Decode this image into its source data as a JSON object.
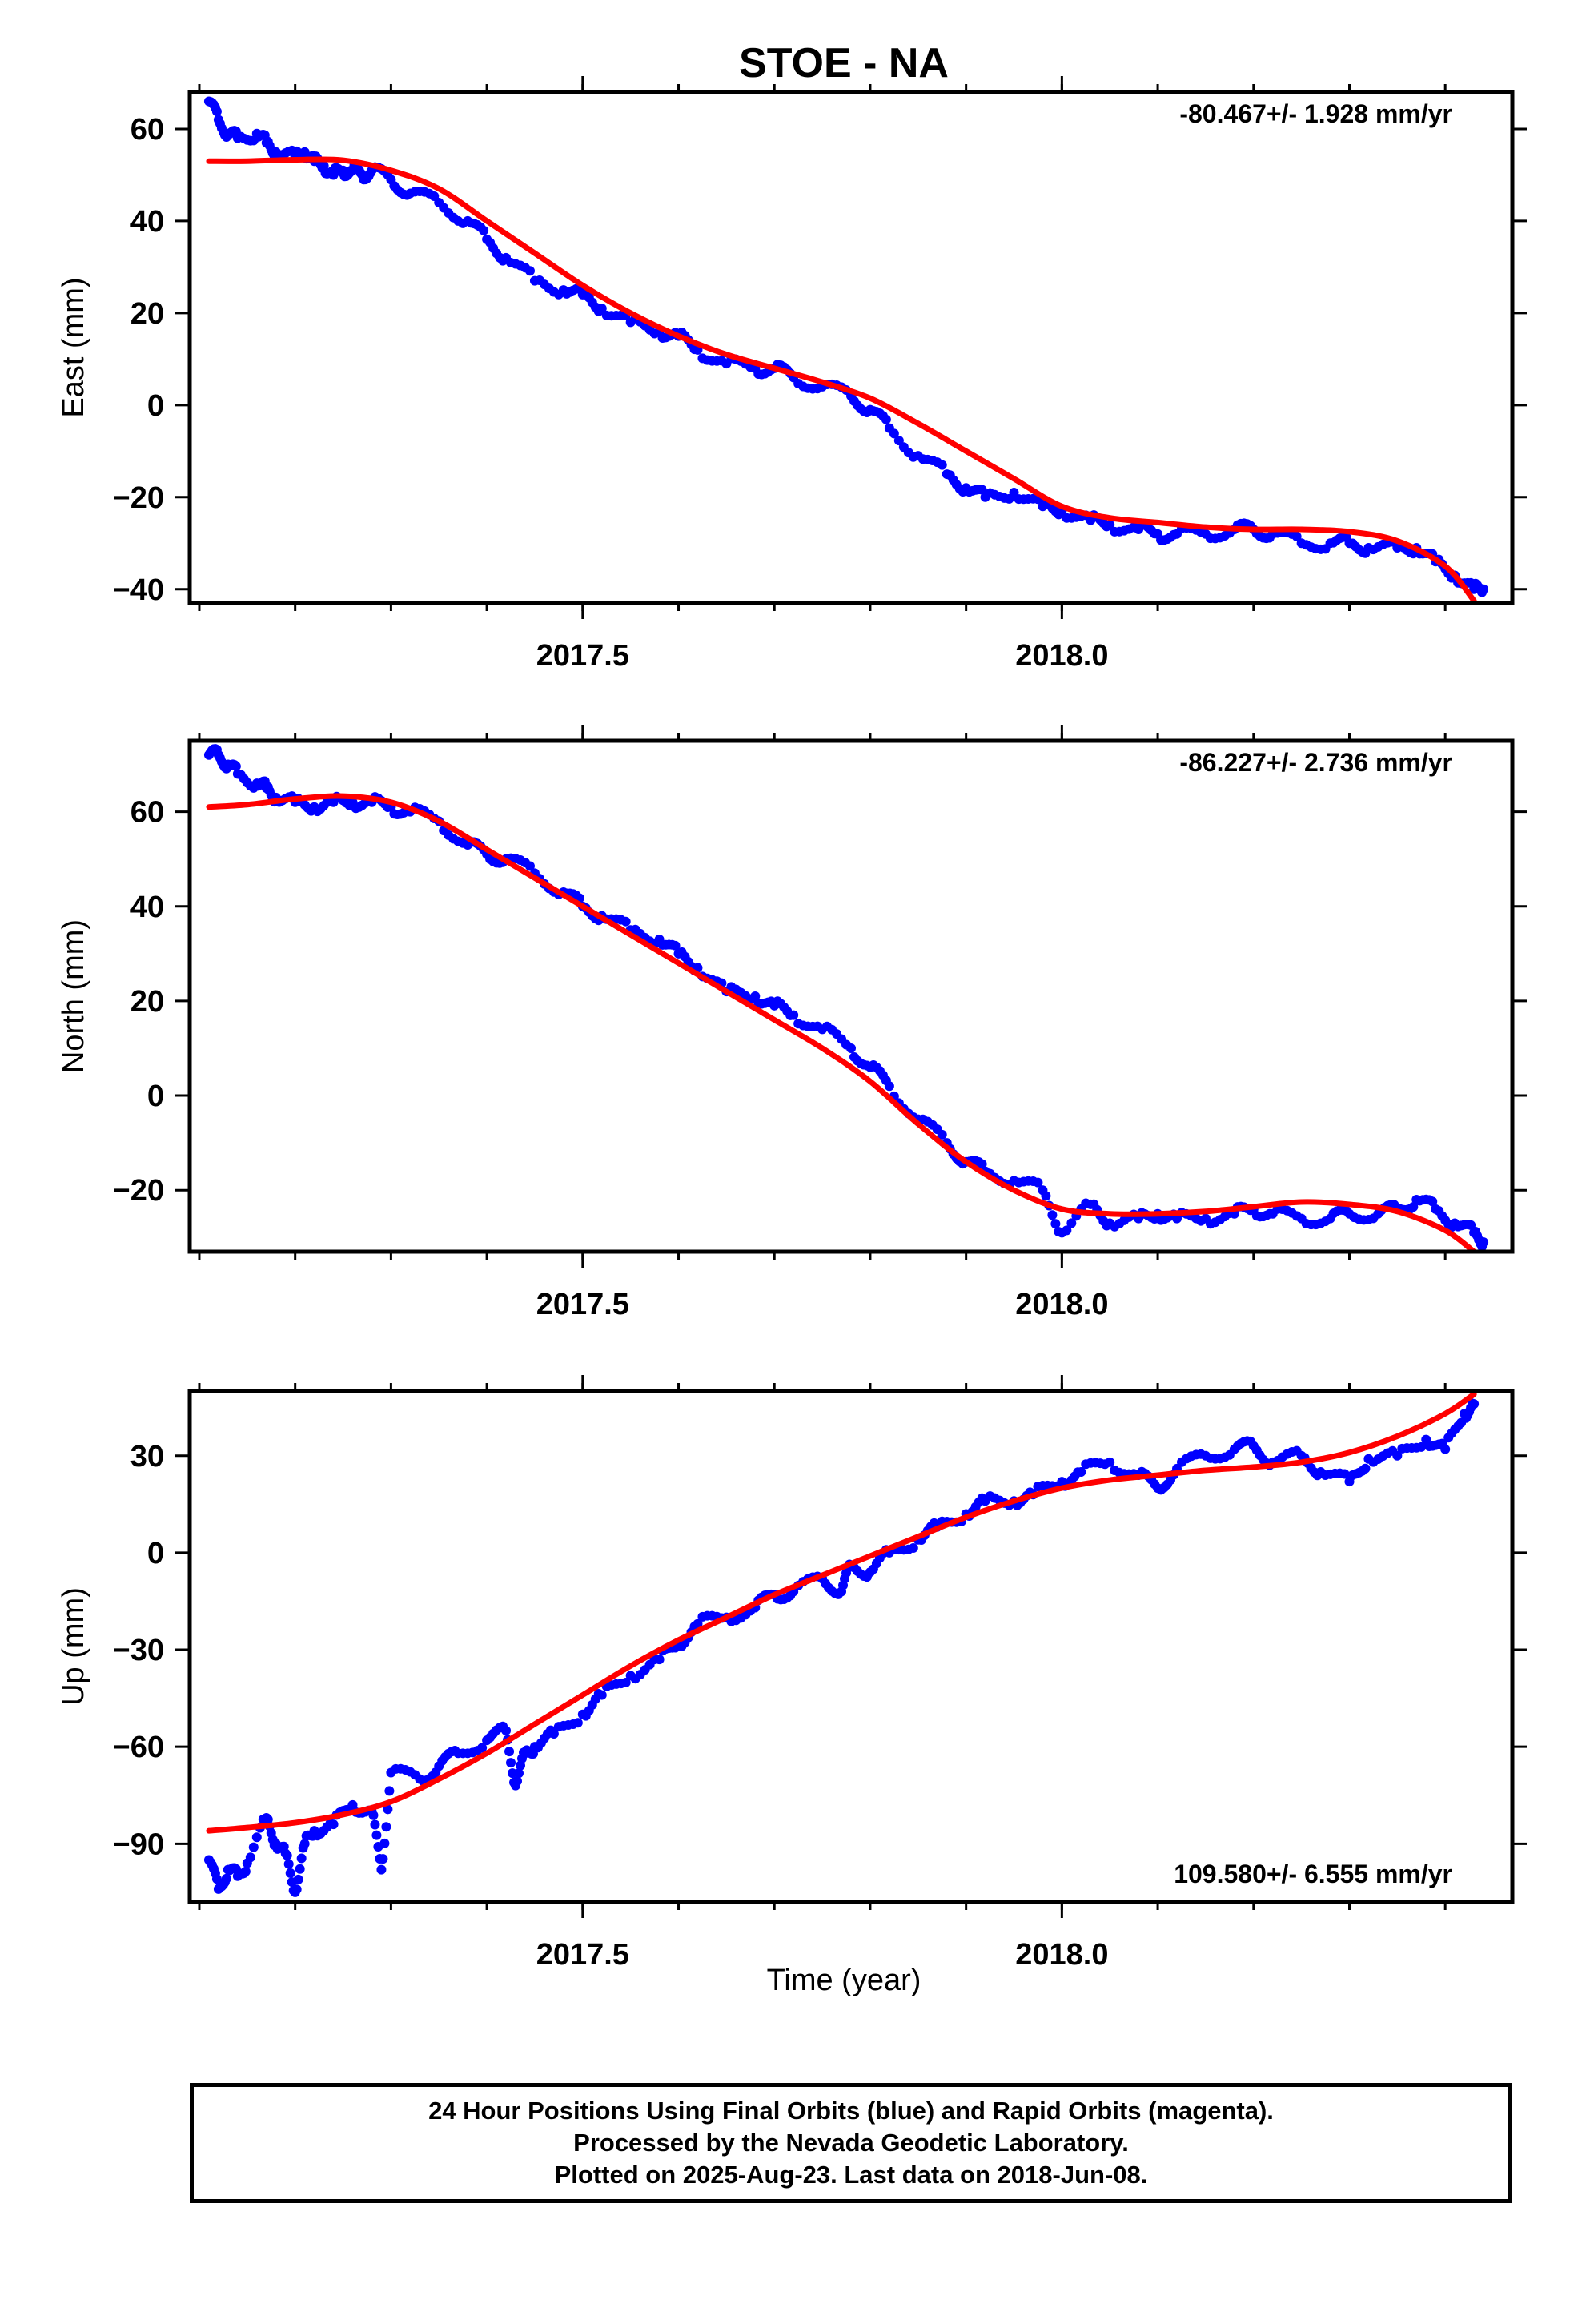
{
  "title": "STOE - NA",
  "xlabel": "Time (year)",
  "footer": {
    "line1": "24 Hour Positions Using Final Orbits (blue) and Rapid Orbits (magenta).",
    "line2": "Processed by the Nevada Geodetic Laboratory.",
    "line3": "Plotted on 2025-Aug-23. Last data on 2018-Jun-08."
  },
  "colors": {
    "points": "#0000ff",
    "fit": "#ff0000",
    "axes": "#000000"
  },
  "chart_data": [
    {
      "type": "scatter",
      "component": "east",
      "ylabel": "East (mm)",
      "rate": "-80.467+/- 1.928 mm/yr",
      "rate_position": "top-right",
      "xlim": [
        2017.09,
        2018.47
      ],
      "ylim": [
        -43,
        68
      ],
      "xticks": [
        2017.5,
        2018.0
      ],
      "xtick_labels": [
        "2017.5",
        "2018.0"
      ],
      "yticks": [
        60,
        40,
        20,
        0,
        -20,
        -40
      ],
      "ytick_labels": [
        "60",
        "40",
        "20",
        "0",
        "−20",
        "−40"
      ],
      "fit_x": [
        2017.11,
        2017.15,
        2017.2,
        2017.25,
        2017.3,
        2017.35,
        2017.4,
        2017.45,
        2017.5,
        2017.55,
        2017.6,
        2017.65,
        2017.7,
        2017.75,
        2017.8,
        2017.85,
        2017.9,
        2017.95,
        2018.0,
        2018.05,
        2018.1,
        2018.15,
        2018.2,
        2018.25,
        2018.3,
        2018.35,
        2018.4,
        2018.43
      ],
      "fit_y": [
        53,
        53,
        53.3,
        53.2,
        51,
        47,
        40,
        33,
        26,
        20,
        15,
        11,
        8,
        5,
        1.5,
        -4,
        -10,
        -16,
        -22,
        -24.5,
        -25.5,
        -26.5,
        -27,
        -27,
        -27.5,
        -29.5,
        -35,
        -42.5
      ],
      "series": [
        {
          "name": "Final Orbits",
          "x": [
            2017.11,
            2017.12,
            2017.13,
            2017.14,
            2017.16,
            2017.17,
            2017.18,
            2017.2,
            2017.21,
            2017.22,
            2017.23,
            2017.24,
            2017.25,
            2017.26,
            2017.27,
            2017.28,
            2017.3,
            2017.32,
            2017.35,
            2017.38,
            2017.4,
            2017.42,
            2017.45,
            2017.48,
            2017.5,
            2017.52,
            2017.55,
            2017.58,
            2017.6,
            2017.62,
            2017.65,
            2017.68,
            2017.7,
            2017.72,
            2017.75,
            2017.78,
            2017.8,
            2017.82,
            2017.85,
            2017.88,
            2017.9,
            2017.92,
            2017.95,
            2017.98,
            2018.0,
            2018.03,
            2018.05,
            2018.08,
            2018.1,
            2018.12,
            2018.15,
            2018.18,
            2018.2,
            2018.22,
            2018.25,
            2018.28,
            2018.3,
            2018.32,
            2018.35,
            2018.37,
            2018.39,
            2018.41,
            2018.43,
            2018.44
          ],
          "y": [
            66,
            62,
            59,
            58,
            59,
            57,
            55,
            54,
            55,
            53,
            52,
            50,
            51,
            51,
            50,
            51,
            49,
            46,
            44,
            40,
            36,
            32,
            27,
            25,
            24,
            21,
            18,
            16,
            15,
            12,
            9,
            8,
            8,
            6,
            4,
            2,
            -1,
            -5,
            -11,
            -15,
            -18,
            -20,
            -19,
            -22,
            -23,
            -25,
            -26,
            -27,
            -28,
            -28,
            -28,
            -27,
            -27,
            -28,
            -30,
            -30,
            -30,
            -31,
            -31,
            -31,
            -34,
            -37,
            -40,
            -40
          ]
        }
      ]
    },
    {
      "type": "scatter",
      "component": "north",
      "ylabel": "North (mm)",
      "rate": "-86.227+/- 2.736 mm/yr",
      "rate_position": "top-right",
      "xlim": [
        2017.09,
        2018.47
      ],
      "ylim": [
        -33,
        75
      ],
      "xticks": [
        2017.5,
        2018.0
      ],
      "xtick_labels": [
        "2017.5",
        "2018.0"
      ],
      "yticks": [
        60,
        40,
        20,
        0,
        -20
      ],
      "ytick_labels": [
        "60",
        "40",
        "20",
        "0",
        "−20"
      ],
      "fit_x": [
        2017.11,
        2017.15,
        2017.2,
        2017.25,
        2017.3,
        2017.35,
        2017.4,
        2017.45,
        2017.5,
        2017.55,
        2017.6,
        2017.65,
        2017.7,
        2017.75,
        2017.8,
        2017.85,
        2017.9,
        2017.95,
        2018.0,
        2018.05,
        2018.1,
        2018.15,
        2018.2,
        2018.25,
        2018.3,
        2018.35,
        2018.4,
        2018.43
      ],
      "fit_y": [
        61,
        61.5,
        62.7,
        63.3,
        62,
        58,
        52,
        46,
        40,
        34,
        28,
        22,
        16,
        10,
        3,
        -6,
        -14,
        -20,
        -24,
        -25,
        -25,
        -24.5,
        -23.5,
        -22.5,
        -23,
        -24.5,
        -28.5,
        -33
      ],
      "series": [
        {
          "name": "Final Orbits",
          "x": [
            2017.11,
            2017.12,
            2017.13,
            2017.14,
            2017.16,
            2017.17,
            2017.18,
            2017.2,
            2017.22,
            2017.24,
            2017.26,
            2017.28,
            2017.3,
            2017.32,
            2017.35,
            2017.38,
            2017.4,
            2017.42,
            2017.45,
            2017.48,
            2017.5,
            2017.52,
            2017.55,
            2017.58,
            2017.6,
            2017.62,
            2017.65,
            2017.68,
            2017.7,
            2017.72,
            2017.75,
            2017.78,
            2017.8,
            2017.82,
            2017.85,
            2017.88,
            2017.9,
            2017.92,
            2017.95,
            2017.98,
            2018.0,
            2018.03,
            2018.05,
            2018.08,
            2018.1,
            2018.12,
            2018.15,
            2018.18,
            2018.2,
            2018.22,
            2018.25,
            2018.28,
            2018.3,
            2018.33,
            2018.35,
            2018.37,
            2018.39,
            2018.41,
            2018.43,
            2018.44
          ],
          "y": [
            72,
            72,
            70,
            68,
            66,
            65,
            63,
            62,
            61,
            62,
            62,
            62,
            61,
            60,
            58,
            53,
            51,
            50,
            47,
            43,
            40,
            38,
            35,
            33,
            30,
            27,
            22,
            21,
            19,
            17,
            14,
            10,
            6,
            2,
            -5,
            -10,
            -14,
            -16,
            -18,
            -20,
            -29,
            -23,
            -27,
            -26,
            -25,
            -26,
            -26,
            -25,
            -24,
            -25,
            -26,
            -26,
            -25,
            -25,
            -24,
            -22,
            -24,
            -27,
            -29,
            -31
          ]
        }
      ]
    },
    {
      "type": "scatter",
      "component": "up",
      "ylabel": "Up (mm)",
      "xlabel": "Time (year)",
      "rate": "109.580+/- 6.555 mm/yr",
      "rate_position": "bottom-right",
      "xlim": [
        2017.09,
        2018.47
      ],
      "ylim": [
        -108,
        50
      ],
      "xticks": [
        2017.5,
        2018.0
      ],
      "xtick_labels": [
        "2017.5",
        "2018.0"
      ],
      "yticks": [
        30,
        0,
        -30,
        -60,
        -90
      ],
      "ytick_labels": [
        "30",
        "0",
        "−30",
        "−60",
        "−90"
      ],
      "fit_x": [
        2017.11,
        2017.15,
        2017.2,
        2017.25,
        2017.3,
        2017.35,
        2017.4,
        2017.45,
        2017.5,
        2017.55,
        2017.6,
        2017.65,
        2017.7,
        2017.75,
        2017.8,
        2017.85,
        2017.9,
        2017.95,
        2018.0,
        2018.05,
        2018.1,
        2018.15,
        2018.2,
        2018.25,
        2018.3,
        2018.35,
        2018.4,
        2018.43
      ],
      "fit_y": [
        -86,
        -85,
        -83.5,
        -81,
        -77,
        -70,
        -62,
        -53,
        -44,
        -35,
        -27,
        -20,
        -13,
        -7,
        -1,
        5,
        11,
        16,
        20,
        22.5,
        24,
        25.5,
        26.5,
        28,
        31,
        36,
        43,
        49
      ],
      "series": [
        {
          "name": "Final Orbits",
          "x": [
            2017.11,
            2017.12,
            2017.13,
            2017.14,
            2017.15,
            2017.17,
            2017.18,
            2017.19,
            2017.2,
            2017.21,
            2017.22,
            2017.24,
            2017.26,
            2017.28,
            2017.29,
            2017.3,
            2017.33,
            2017.35,
            2017.37,
            2017.4,
            2017.42,
            2017.43,
            2017.44,
            2017.45,
            2017.47,
            2017.5,
            2017.52,
            2017.55,
            2017.58,
            2017.6,
            2017.62,
            2017.65,
            2017.68,
            2017.7,
            2017.72,
            2017.75,
            2017.77,
            2017.78,
            2017.8,
            2017.82,
            2017.85,
            2017.87,
            2017.9,
            2017.92,
            2017.95,
            2017.97,
            2018.0,
            2018.02,
            2018.05,
            2018.08,
            2018.1,
            2018.12,
            2018.15,
            2018.18,
            2018.2,
            2018.22,
            2018.25,
            2018.27,
            2018.3,
            2018.32,
            2018.35,
            2018.38,
            2018.4,
            2018.42,
            2018.43
          ],
          "y": [
            -95,
            -104,
            -98,
            -100,
            -96,
            -82,
            -90,
            -93,
            -105,
            -90,
            -86,
            -84,
            -78,
            -80,
            -98,
            -68,
            -70,
            -66,
            -62,
            -58,
            -55,
            -72,
            -62,
            -60,
            -56,
            -50,
            -44,
            -38,
            -33,
            -28,
            -22,
            -20,
            -17,
            -13,
            -12,
            -8,
            -12,
            -4,
            -6,
            0,
            4,
            8,
            12,
            16,
            16,
            18,
            22,
            25,
            28,
            24,
            20,
            26,
            30,
            32,
            33,
            28,
            30,
            25,
            22,
            29,
            30,
            35,
            32,
            43,
            46
          ]
        }
      ]
    }
  ]
}
